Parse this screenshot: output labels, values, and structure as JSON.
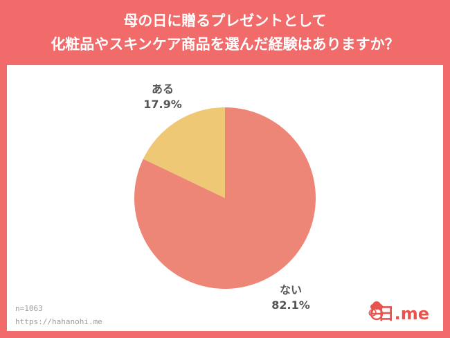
{
  "header": {
    "line1": "母の日に贈るプレゼントとして",
    "line2": "化粧品やスキンケア商品を選んだ経験はありますか？"
  },
  "colors": {
    "background": "#F26B6B",
    "panel": "#FFFFFF",
    "nai": "#EE8677",
    "aru": "#EEC874"
  },
  "chart_data": {
    "type": "pie",
    "title": "母の日に贈るプレゼントとして化粧品やスキンケア商品を選んだ経験はありますか？",
    "slices": [
      {
        "label": "ある",
        "value": 17.9,
        "display": "17.9%",
        "color": "#EEC874"
      },
      {
        "label": "ない",
        "value": 82.1,
        "display": "82.1%",
        "color": "#EE8677"
      }
    ],
    "start": "top",
    "direction": "counterclockwise-for-first"
  },
  "footer": {
    "sample": "n=1063",
    "url": "https://hahanohi.me"
  },
  "logo": {
    "part1": "の",
    "part2": "日.me",
    "icon": "carnation-icon"
  }
}
